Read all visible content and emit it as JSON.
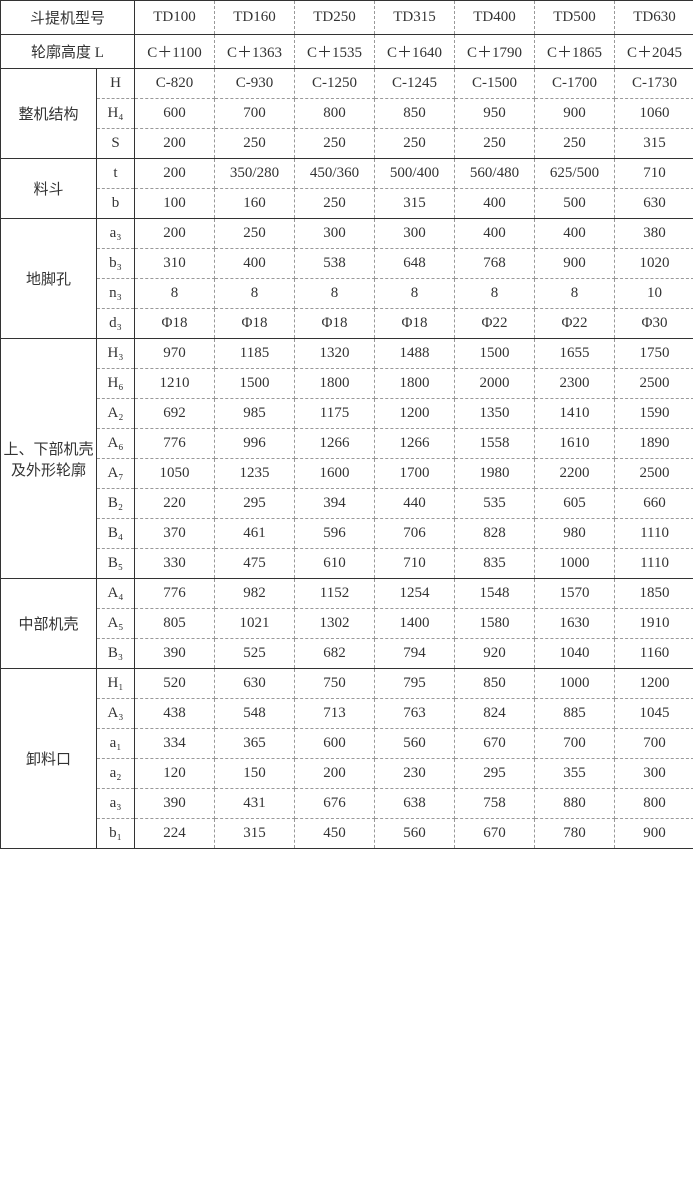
{
  "header": {
    "model_label": "斗提机型号",
    "models": [
      "TD100",
      "TD160",
      "TD250",
      "TD315",
      "TD400",
      "TD500",
      "TD630"
    ]
  },
  "profile_height": {
    "label": "轮廓高度 L",
    "values": [
      "C＋1100",
      "C＋1363",
      "C＋1535",
      "C＋1640",
      "C＋1790",
      "C＋1865",
      "C＋2045"
    ]
  },
  "machine_structure": {
    "label": "整机结构",
    "rows": [
      {
        "param": "H",
        "values": [
          "C-820",
          "C-930",
          "C-1250",
          "C-1245",
          "C-1500",
          "C-1700",
          "C-1730"
        ]
      },
      {
        "param": "H₄",
        "values": [
          "600",
          "700",
          "800",
          "850",
          "950",
          "900",
          "1060"
        ]
      },
      {
        "param": "S",
        "values": [
          "200",
          "250",
          "250",
          "250",
          "250",
          "250",
          "315"
        ]
      }
    ]
  },
  "hopper": {
    "label": "料斗",
    "rows": [
      {
        "param": "t",
        "values": [
          "200",
          "350/280",
          "450/360",
          "500/400",
          "560/480",
          "625/500",
          "710"
        ]
      },
      {
        "param": "b",
        "values": [
          "100",
          "160",
          "250",
          "315",
          "400",
          "500",
          "630"
        ]
      }
    ]
  },
  "anchor_hole": {
    "label": "地脚孔",
    "rows": [
      {
        "param": "a₃",
        "values": [
          "200",
          "250",
          "300",
          "300",
          "400",
          "400",
          "380"
        ]
      },
      {
        "param": "b₃",
        "values": [
          "310",
          "400",
          "538",
          "648",
          "768",
          "900",
          "1020"
        ]
      },
      {
        "param": "n₃",
        "values": [
          "8",
          "8",
          "8",
          "8",
          "8",
          "8",
          "10"
        ]
      },
      {
        "param": "d₃",
        "values": [
          "Φ18",
          "Φ18",
          "Φ18",
          "Φ18",
          "Φ22",
          "Φ22",
          "Φ30"
        ]
      }
    ]
  },
  "upper_lower_shell": {
    "label": "上、下部机壳及外形轮廓",
    "rows": [
      {
        "param": "H₃",
        "values": [
          "970",
          "1185",
          "1320",
          "1488",
          "1500",
          "1655",
          "1750"
        ]
      },
      {
        "param": "H₆",
        "values": [
          "1210",
          "1500",
          "1800",
          "1800",
          "2000",
          "2300",
          "2500"
        ]
      },
      {
        "param": "A₂",
        "values": [
          "692",
          "985",
          "1175",
          "1200",
          "1350",
          "1410",
          "1590"
        ]
      },
      {
        "param": "A₆",
        "values": [
          "776",
          "996",
          "1266",
          "1266",
          "1558",
          "1610",
          "1890"
        ]
      },
      {
        "param": "A₇",
        "values": [
          "1050",
          "1235",
          "1600",
          "1700",
          "1980",
          "2200",
          "2500"
        ]
      },
      {
        "param": "B₂",
        "values": [
          "220",
          "295",
          "394",
          "440",
          "535",
          "605",
          "660"
        ]
      },
      {
        "param": "B₄",
        "values": [
          "370",
          "461",
          "596",
          "706",
          "828",
          "980",
          "1110"
        ]
      },
      {
        "param": "B₅",
        "values": [
          "330",
          "475",
          "610",
          "710",
          "835",
          "1000",
          "1110"
        ]
      }
    ]
  },
  "middle_shell": {
    "label": "中部机壳",
    "rows": [
      {
        "param": "A₄",
        "values": [
          "776",
          "982",
          "1152",
          "1254",
          "1548",
          "1570",
          "1850"
        ]
      },
      {
        "param": "A₅",
        "values": [
          "805",
          "1021",
          "1302",
          "1400",
          "1580",
          "1630",
          "1910"
        ]
      },
      {
        "param": "B₃",
        "values": [
          "390",
          "525",
          "682",
          "794",
          "920",
          "1040",
          "1160"
        ]
      }
    ]
  },
  "discharge_port": {
    "label": "卸料口",
    "rows": [
      {
        "param": "H₁",
        "values": [
          "520",
          "630",
          "750",
          "795",
          "850",
          "1000",
          "1200"
        ]
      },
      {
        "param": "A₃",
        "values": [
          "438",
          "548",
          "713",
          "763",
          "824",
          "885",
          "1045"
        ]
      },
      {
        "param": "a₁",
        "values": [
          "334",
          "365",
          "600",
          "560",
          "670",
          "700",
          "700"
        ]
      },
      {
        "param": "a₂",
        "values": [
          "120",
          "150",
          "200",
          "230",
          "295",
          "355",
          "300"
        ]
      },
      {
        "param": "a₃",
        "values": [
          "390",
          "431",
          "676",
          "638",
          "758",
          "880",
          "800"
        ]
      },
      {
        "param": "b₁",
        "values": [
          "224",
          "315",
          "450",
          "560",
          "670",
          "780",
          "900"
        ]
      }
    ]
  }
}
